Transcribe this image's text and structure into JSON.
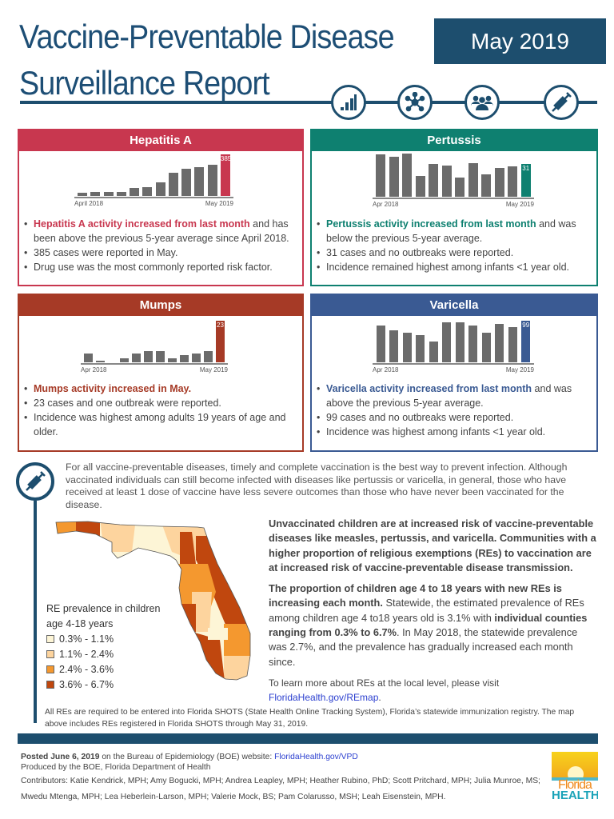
{
  "header": {
    "title_line1": "Vaccine-Preventable Disease",
    "title_line2": "Surveillance Report",
    "date": "May 2019",
    "icons": [
      "bar-chart-icon",
      "network-icon",
      "people-group-icon",
      "syringe-icon"
    ],
    "color": "#1d4e6e"
  },
  "panels": [
    {
      "title": "Hepatitis A",
      "color": "#c8374f",
      "chart": {
        "type": "bar",
        "x_start": "April 2018",
        "x_end": "May 2019",
        "values": [
          30,
          35,
          40,
          40,
          75,
          85,
          125,
          215,
          250,
          270,
          290,
          385
        ],
        "highlight_label": "385"
      },
      "bullets": [
        {
          "em": "Hepatitis A activity increased from last month",
          "rest": " and has been above the previous 5-year average since April 2018."
        },
        {
          "em": "",
          "rest": "385 cases were reported in May."
        },
        {
          "em": "",
          "rest": "Drug use was the most commonly reported risk factor."
        }
      ]
    },
    {
      "title": "Pertussis",
      "color": "#0e8070",
      "chart": {
        "type": "bar",
        "x_start": "Apr 2018",
        "x_end": "May 2019",
        "values": [
          40,
          38,
          41,
          20,
          31,
          30,
          18,
          32,
          21,
          27,
          29,
          31
        ],
        "highlight_label": "31"
      },
      "bullets": [
        {
          "em": "Pertussis activity increased from last month",
          "rest": " and was below the previous 5-year average."
        },
        {
          "em": "",
          "rest": "31 cases and no outbreaks were reported."
        },
        {
          "em": "",
          "rest": "Incidence remained highest among infants <1 year old."
        }
      ]
    },
    {
      "title": "Mumps",
      "color": "#a63a26",
      "chart": {
        "type": "bar",
        "x_start": "Apr 2018",
        "x_end": "May 2019",
        "values": [
          5,
          1,
          0,
          2,
          5,
          6,
          6,
          2,
          4,
          5,
          6,
          23
        ],
        "highlight_label": "23"
      },
      "bullets": [
        {
          "em": "Mumps activity increased in May.",
          "rest": ""
        },
        {
          "em": "",
          "rest": "23 cases and one outbreak were reported."
        },
        {
          "em": "",
          "rest": "Incidence was highest among adults 19 years of age and older."
        }
      ]
    },
    {
      "title": "Varicella",
      "color": "#3a5a93",
      "chart": {
        "type": "bar",
        "x_start": "Apr 2018",
        "x_end": "May  2019",
        "values": [
          88,
          77,
          70,
          64,
          49,
          95,
          96,
          87,
          70,
          91,
          84,
          99
        ],
        "highlight_label": "99"
      },
      "bullets": [
        {
          "em": "Varicella activity increased from last month",
          "rest": " and was above the previous 5-year average."
        },
        {
          "em": "",
          "rest": "99 cases and no outbreaks were reported."
        },
        {
          "em": "",
          "rest": "Incidence was highest among infants <1 year old."
        }
      ]
    }
  ],
  "intro": "For all vaccine-preventable diseases, timely and complete vaccination is the best way to prevent infection. Although vaccinated individuals can still become infected with diseases like pertussis or varicella, in general, those who have received at least 1 dose of vaccine have less severe outcomes than those who have never been vaccinated for the disease.",
  "map": {
    "legend_title": "RE prevalence in children age 4-18 years",
    "legend": [
      {
        "label": "0.3% - 1.1%",
        "color": "#fdf5d6"
      },
      {
        "label": "1.1% - 2.4%",
        "color": "#fdd49e"
      },
      {
        "label": "2.4% - 3.6%",
        "color": "#f4982f"
      },
      {
        "label": "3.6% - 6.7%",
        "color": "#c0470e"
      }
    ]
  },
  "right": {
    "p1": "Unvaccinated children are at increased risk of vaccine-preventable diseases like measles, pertussis, and varicella. Communities with a higher proportion of religious exemptions (REs) to vaccination are at increased risk of vaccine-preventable disease transmission.",
    "p2_b1": "The proportion of children age 4 to 18 years with new REs is increasing each month.",
    "p2_t1": " Statewide, the estimated prevalence of REs among children age 4 to18 years old is 3.1% with ",
    "p2_b2": "individual counties ranging from 0.3% to 6.7%",
    "p2_t2": ". In May 2018, the statewide prevalence was 2.7%, and the prevalence has gradually increased each month since.",
    "p3": "To learn more about REs at the local level, please visit ",
    "p3_link": "FloridaHealth.gov/REmap",
    "p3_end": "."
  },
  "note": "All REs are required to be entered into Florida SHOTS (State Health Online Tracking System), Florida’s statewide immunization registry. The map above includes REs registered in Florida SHOTS through May 31, 2019.",
  "footer": {
    "posted": "Posted June 6, 2019",
    "posted_rest": " on the Bureau of Epidemiology (BOE) website: ",
    "link": "FloridaHealth.gov/VPD",
    "produced": "Produced by the BOE, Florida Department of Health",
    "contributors": "Contributors: Katie Kendrick, MPH; Amy Bogucki, MPH; Andrea Leapley, MPH; Heather Rubino, PhD; Scott Pritchard, MPH; Julia Munroe, MS; Mwedu Mtenga, MPH; Lea Heberlein-Larson, MPH; Valerie Mock, BS; Pam Colarusso, MSH; Leah Eisenstein, MPH.",
    "logo_line1": "Florida",
    "logo_line2": "HEALTH"
  }
}
